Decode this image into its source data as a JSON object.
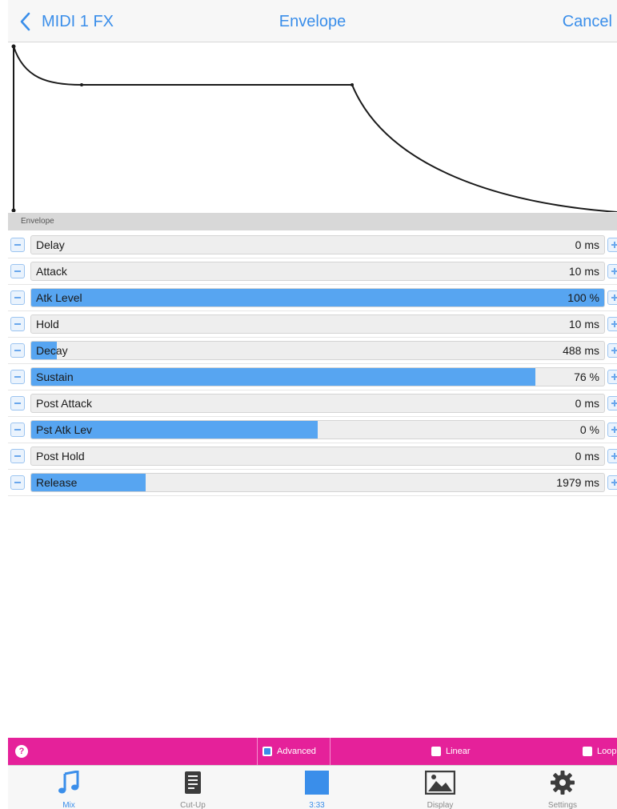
{
  "nav": {
    "back_label": "MIDI 1 FX",
    "title": "Envelope",
    "cancel_label": "Cancel",
    "accent_color": "#3a8eea"
  },
  "section": {
    "title": "Envelope"
  },
  "params": [
    {
      "label": "Delay",
      "value": "0 ms",
      "fill": 0
    },
    {
      "label": "Attack",
      "value": "10 ms",
      "fill": 0
    },
    {
      "label": "Atk Level",
      "value": "100 %",
      "fill": 1.0
    },
    {
      "label": "Hold",
      "value": "10 ms",
      "fill": 0
    },
    {
      "label": "Decay",
      "value": "488 ms",
      "fill": 0.045
    },
    {
      "label": "Sustain",
      "value": "76 %",
      "fill": 0.88
    },
    {
      "label": "Post Attack",
      "value": "0 ms",
      "fill": 0
    },
    {
      "label": "Pst Atk Lev",
      "value": "0 %",
      "fill": 0.5
    },
    {
      "label": "Post Hold",
      "value": "0 ms",
      "fill": 0
    },
    {
      "label": "Release",
      "value": "1979 ms",
      "fill": 0.2
    }
  ],
  "options": {
    "help_label": "?",
    "advanced_label": "Advanced",
    "advanced_checked": true,
    "linear_label": "Linear",
    "linear_checked": false,
    "loop_label": "Loop",
    "loop_checked": false,
    "bar_color": "#e5219a"
  },
  "tabs": [
    {
      "label": "Mix",
      "icon": "music-note-icon",
      "active": true
    },
    {
      "label": "Cut-Up",
      "icon": "document-icon",
      "active": false
    },
    {
      "label": "3:33",
      "icon": "square-icon",
      "active": false
    },
    {
      "label": "Display",
      "icon": "image-icon",
      "active": false
    },
    {
      "label": "Settings",
      "icon": "gear-icon",
      "active": false
    }
  ]
}
